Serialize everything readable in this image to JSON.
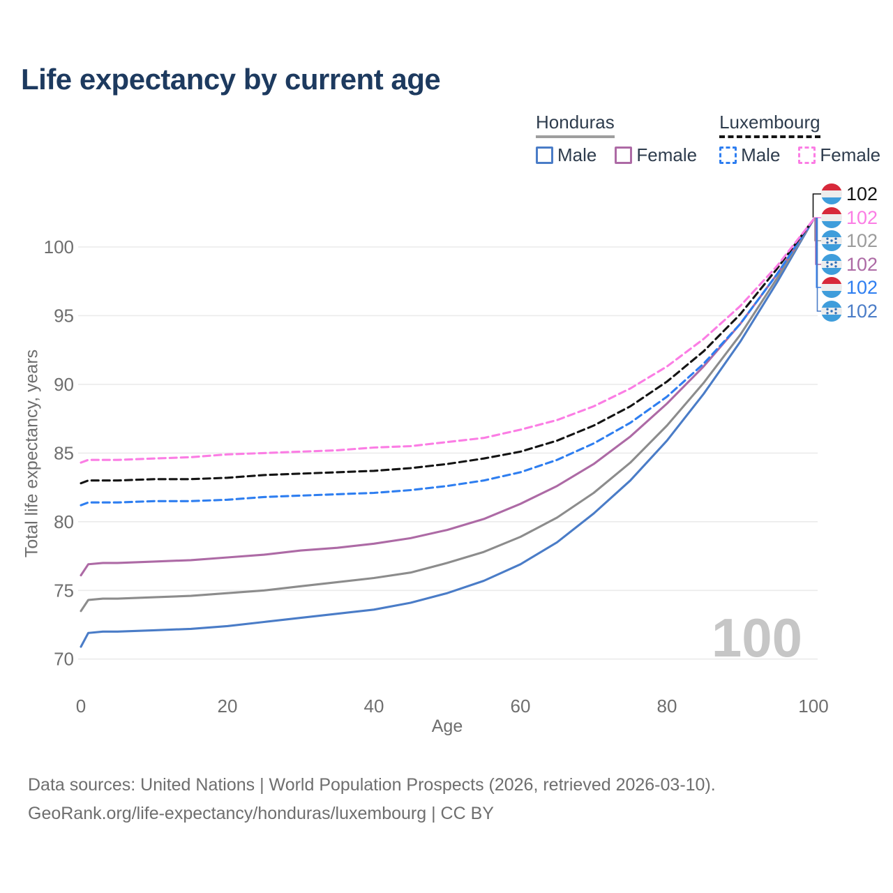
{
  "page": {
    "footer_line1": "Data sources: United Nations | World Population Prospects (2026, retrieved 2026-03-10).",
    "footer_line2": "GeoRank.org/life-expectancy/honduras/luxembourg | CC BY"
  },
  "legend": {
    "groups": [
      {
        "name": "Honduras",
        "underline_style": "solid",
        "underline_color": "#9e9e9e",
        "items": [
          {
            "label": "Male",
            "color": "#4a7cc7",
            "dash": "solid"
          },
          {
            "label": "Female",
            "color": "#ad6aa5",
            "dash": "solid"
          }
        ]
      },
      {
        "name": "Luxembourg",
        "underline_style": "dashed",
        "underline_color": "#141414",
        "items": [
          {
            "label": "Male",
            "color": "#2e7ef0",
            "dash": "dashed"
          },
          {
            "label": "Female",
            "color": "#fb7de4",
            "dash": "dashed"
          }
        ]
      }
    ]
  },
  "chart_data": {
    "type": "line",
    "title": "Life expectancy by current age",
    "xlabel": "Age",
    "ylabel": "Total life expectancy, years",
    "x_ticks": [
      0,
      20,
      40,
      60,
      80,
      100
    ],
    "y_ticks": [
      70,
      75,
      80,
      85,
      90,
      95,
      100
    ],
    "xlim": [
      0,
      100
    ],
    "ylim": [
      69.5,
      102
    ],
    "grid": "horizontal",
    "legend_position": "top-right",
    "watermark": "100",
    "series": [
      {
        "name": "Honduras Male",
        "country": "Honduras",
        "sex": "Male",
        "color": "#4a7cc7",
        "dash": "solid",
        "end_value": 102,
        "points": [
          [
            0,
            70.9
          ],
          [
            1,
            71.9
          ],
          [
            3,
            72.0
          ],
          [
            5,
            72.0
          ],
          [
            10,
            72.1
          ],
          [
            15,
            72.2
          ],
          [
            20,
            72.4
          ],
          [
            25,
            72.7
          ],
          [
            30,
            73.0
          ],
          [
            35,
            73.3
          ],
          [
            40,
            73.6
          ],
          [
            45,
            74.1
          ],
          [
            50,
            74.8
          ],
          [
            55,
            75.7
          ],
          [
            60,
            76.9
          ],
          [
            65,
            78.5
          ],
          [
            70,
            80.6
          ],
          [
            75,
            83.0
          ],
          [
            80,
            85.9
          ],
          [
            85,
            89.3
          ],
          [
            90,
            93.1
          ],
          [
            95,
            97.4
          ],
          [
            100,
            102
          ]
        ]
      },
      {
        "name": "Honduras",
        "country": "Honduras",
        "sex": "Both",
        "color": "#8c8c8c",
        "dash": "solid",
        "end_value": 102,
        "points": [
          [
            0,
            73.5
          ],
          [
            1,
            74.3
          ],
          [
            3,
            74.4
          ],
          [
            5,
            74.4
          ],
          [
            10,
            74.5
          ],
          [
            15,
            74.6
          ],
          [
            20,
            74.8
          ],
          [
            25,
            75.0
          ],
          [
            30,
            75.3
          ],
          [
            35,
            75.6
          ],
          [
            40,
            75.9
          ],
          [
            45,
            76.3
          ],
          [
            50,
            77.0
          ],
          [
            55,
            77.8
          ],
          [
            60,
            78.9
          ],
          [
            65,
            80.3
          ],
          [
            70,
            82.1
          ],
          [
            75,
            84.3
          ],
          [
            80,
            87.0
          ],
          [
            85,
            90.1
          ],
          [
            90,
            93.6
          ],
          [
            95,
            97.7
          ],
          [
            100,
            102
          ]
        ]
      },
      {
        "name": "Honduras Female",
        "country": "Honduras",
        "sex": "Female",
        "color": "#ad6aa5",
        "dash": "solid",
        "end_value": 102,
        "points": [
          [
            0,
            76.1
          ],
          [
            1,
            76.9
          ],
          [
            3,
            77.0
          ],
          [
            5,
            77.0
          ],
          [
            10,
            77.1
          ],
          [
            15,
            77.2
          ],
          [
            20,
            77.4
          ],
          [
            25,
            77.6
          ],
          [
            30,
            77.9
          ],
          [
            35,
            78.1
          ],
          [
            40,
            78.4
          ],
          [
            45,
            78.8
          ],
          [
            50,
            79.4
          ],
          [
            55,
            80.2
          ],
          [
            60,
            81.3
          ],
          [
            65,
            82.6
          ],
          [
            70,
            84.2
          ],
          [
            75,
            86.2
          ],
          [
            80,
            88.6
          ],
          [
            85,
            91.3
          ],
          [
            90,
            94.4
          ],
          [
            95,
            98.0
          ],
          [
            100,
            102
          ]
        ]
      },
      {
        "name": "Luxembourg Male",
        "country": "Luxembourg",
        "sex": "Male",
        "color": "#2e7ef0",
        "dash": "dashed",
        "end_value": 102,
        "points": [
          [
            0,
            81.2
          ],
          [
            1,
            81.4
          ],
          [
            5,
            81.4
          ],
          [
            10,
            81.5
          ],
          [
            15,
            81.5
          ],
          [
            20,
            81.6
          ],
          [
            25,
            81.8
          ],
          [
            30,
            81.9
          ],
          [
            35,
            82.0
          ],
          [
            40,
            82.1
          ],
          [
            45,
            82.3
          ],
          [
            50,
            82.6
          ],
          [
            55,
            83.0
          ],
          [
            60,
            83.6
          ],
          [
            65,
            84.5
          ],
          [
            70,
            85.7
          ],
          [
            75,
            87.2
          ],
          [
            80,
            89.1
          ],
          [
            85,
            91.5
          ],
          [
            90,
            94.4
          ],
          [
            95,
            98.0
          ],
          [
            100,
            102
          ]
        ]
      },
      {
        "name": "Luxembourg",
        "country": "Luxembourg",
        "sex": "Both",
        "color": "#141414",
        "dash": "dashed",
        "end_value": 102,
        "points": [
          [
            0,
            82.8
          ],
          [
            1,
            83.0
          ],
          [
            5,
            83.0
          ],
          [
            10,
            83.1
          ],
          [
            15,
            83.1
          ],
          [
            20,
            83.2
          ],
          [
            25,
            83.4
          ],
          [
            30,
            83.5
          ],
          [
            35,
            83.6
          ],
          [
            40,
            83.7
          ],
          [
            45,
            83.9
          ],
          [
            50,
            84.2
          ],
          [
            55,
            84.6
          ],
          [
            60,
            85.1
          ],
          [
            65,
            85.9
          ],
          [
            70,
            87.0
          ],
          [
            75,
            88.4
          ],
          [
            80,
            90.2
          ],
          [
            85,
            92.4
          ],
          [
            90,
            95.1
          ],
          [
            95,
            98.4
          ],
          [
            100,
            102
          ]
        ]
      },
      {
        "name": "Luxembourg Female",
        "country": "Luxembourg",
        "sex": "Female",
        "color": "#fb7de4",
        "dash": "dashed",
        "end_value": 102,
        "points": [
          [
            0,
            84.3
          ],
          [
            1,
            84.5
          ],
          [
            5,
            84.5
          ],
          [
            10,
            84.6
          ],
          [
            15,
            84.7
          ],
          [
            20,
            84.9
          ],
          [
            25,
            85.0
          ],
          [
            30,
            85.1
          ],
          [
            35,
            85.2
          ],
          [
            40,
            85.4
          ],
          [
            45,
            85.5
          ],
          [
            50,
            85.8
          ],
          [
            55,
            86.1
          ],
          [
            60,
            86.7
          ],
          [
            65,
            87.4
          ],
          [
            70,
            88.4
          ],
          [
            75,
            89.7
          ],
          [
            80,
            91.3
          ],
          [
            85,
            93.3
          ],
          [
            90,
            95.7
          ],
          [
            95,
            98.6
          ],
          [
            100,
            102
          ]
        ]
      }
    ],
    "end_labels": [
      {
        "value": "102",
        "flag": "luxembourg",
        "series": "Luxembourg",
        "color": "#141414"
      },
      {
        "value": "102",
        "flag": "luxembourg",
        "series": "Luxembourg Female",
        "color": "#fb7de4"
      },
      {
        "value": "102",
        "flag": "honduras",
        "series": "Honduras",
        "color": "#9b9b9b"
      },
      {
        "value": "102",
        "flag": "honduras",
        "series": "Honduras Female",
        "color": "#ad6aa5"
      },
      {
        "value": "102",
        "flag": "luxembourg",
        "series": "Luxembourg Male",
        "color": "#2e7ef0"
      },
      {
        "value": "102",
        "flag": "honduras",
        "series": "Honduras Male",
        "color": "#4a7cc7"
      }
    ]
  },
  "flags": {
    "luxembourg": {
      "top": "#d7293a",
      "middle": "#ededed",
      "bottom": "#3f9ddb"
    },
    "honduras": {
      "band": "#3f9ddb",
      "middle": "#ededed",
      "star": "#2f6fb8"
    }
  }
}
